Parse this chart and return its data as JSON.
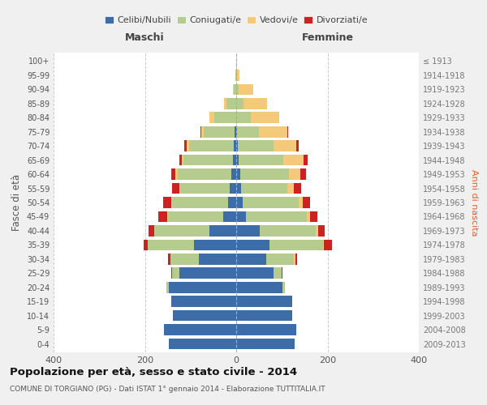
{
  "age_groups": [
    "0-4",
    "5-9",
    "10-14",
    "15-19",
    "20-24",
    "25-29",
    "30-34",
    "35-39",
    "40-44",
    "45-49",
    "50-54",
    "55-59",
    "60-64",
    "65-69",
    "70-74",
    "75-79",
    "80-84",
    "85-89",
    "90-94",
    "95-99",
    "100+"
  ],
  "birth_years": [
    "2009-2013",
    "2004-2008",
    "1999-2003",
    "1994-1998",
    "1989-1993",
    "1984-1988",
    "1979-1983",
    "1974-1978",
    "1969-1973",
    "1964-1968",
    "1959-1963",
    "1954-1958",
    "1949-1953",
    "1944-1948",
    "1939-1943",
    "1934-1938",
    "1929-1933",
    "1924-1928",
    "1919-1923",
    "1914-1918",
    "≤ 1913"
  ],
  "males": {
    "celibi": [
      148,
      158,
      138,
      142,
      148,
      125,
      82,
      92,
      58,
      28,
      18,
      15,
      10,
      7,
      5,
      3,
      0,
      0,
      0,
      0,
      0
    ],
    "coniugati": [
      0,
      0,
      0,
      0,
      5,
      15,
      62,
      102,
      122,
      122,
      122,
      108,
      118,
      108,
      98,
      68,
      48,
      22,
      5,
      2,
      0
    ],
    "vedovi": [
      0,
      0,
      0,
      0,
      0,
      0,
      0,
      0,
      0,
      2,
      2,
      2,
      5,
      5,
      5,
      5,
      10,
      5,
      3,
      0,
      0
    ],
    "divorziati": [
      0,
      0,
      0,
      0,
      0,
      2,
      5,
      8,
      12,
      18,
      18,
      16,
      10,
      5,
      5,
      2,
      0,
      0,
      0,
      0,
      0
    ]
  },
  "females": {
    "nubili": [
      128,
      132,
      122,
      122,
      102,
      82,
      65,
      72,
      52,
      22,
      14,
      10,
      8,
      5,
      3,
      2,
      0,
      0,
      0,
      0,
      0
    ],
    "coniugate": [
      0,
      0,
      0,
      0,
      5,
      18,
      62,
      118,
      122,
      132,
      122,
      102,
      108,
      98,
      78,
      48,
      32,
      16,
      5,
      2,
      0
    ],
    "vedove": [
      0,
      0,
      0,
      0,
      0,
      0,
      2,
      2,
      5,
      8,
      10,
      15,
      25,
      45,
      50,
      62,
      62,
      52,
      32,
      5,
      0
    ],
    "divorziate": [
      0,
      0,
      0,
      0,
      0,
      2,
      5,
      18,
      15,
      15,
      15,
      15,
      12,
      8,
      5,
      2,
      0,
      0,
      0,
      0,
      0
    ]
  },
  "colors": {
    "celibi": "#3d6da8",
    "coniugati": "#b5cc8e",
    "vedovi": "#f5c97a",
    "divorziati": "#cc2222"
  },
  "xlim": 400,
  "title": "Popolazione per età, sesso e stato civile - 2014",
  "subtitle": "COMUNE DI TORGIANO (PG) - Dati ISTAT 1° gennaio 2014 - Elaborazione TUTTITALIA.IT",
  "ylabel_left": "Fasce di età",
  "ylabel_right": "Anni di nascita",
  "xlabel_left": "Maschi",
  "xlabel_right": "Femmine",
  "legend_labels": [
    "Celibi/Nubili",
    "Coniugati/e",
    "Vedovi/e",
    "Divorziati/e"
  ],
  "bg_color": "#f0f0f0",
  "plot_bg_color": "#ffffff",
  "grid_color": "#cccccc"
}
